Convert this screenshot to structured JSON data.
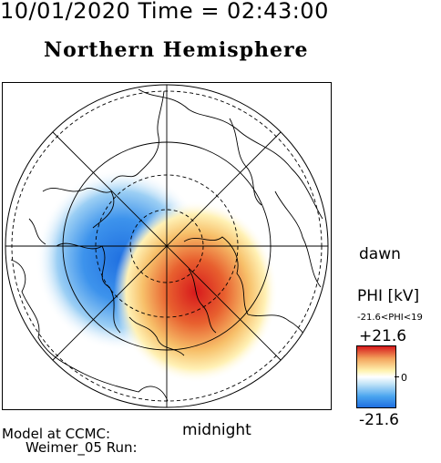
{
  "header": {
    "datetime": "10/01/2020 Time = 02:43:00",
    "hemisphere": "Northern Hemisphere"
  },
  "map": {
    "label_dawn": "dawn",
    "label_midnight": "midnight"
  },
  "colorbar": {
    "title": "PHI [kV]",
    "range_text": "-21.6<PHI<19",
    "max_label": "+21.6",
    "mid_label": "0",
    "min_label": "-21.6",
    "colors": {
      "positive": "#d7191c",
      "neutral": "#ffffff",
      "negative": "#1f6fe0"
    }
  },
  "footer": {
    "model_line1": "Model at CCMC:",
    "model_line2": "Weimer_05 Run:"
  }
}
